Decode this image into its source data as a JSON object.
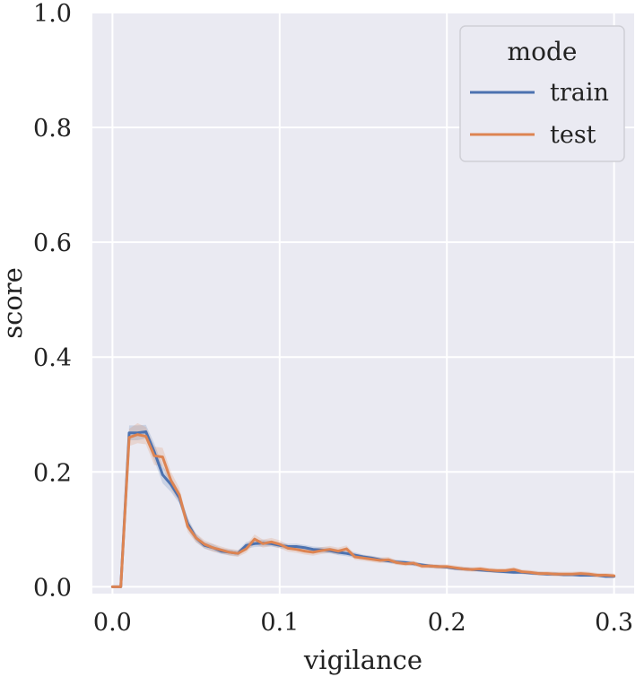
{
  "chart_data": {
    "type": "line",
    "title": "",
    "xlabel": "vigilance",
    "ylabel": "score",
    "xlim": [
      -0.012,
      0.312
    ],
    "ylim": [
      -0.012,
      1.0
    ],
    "x_ticks": [
      0.0,
      0.1,
      0.2,
      0.3
    ],
    "x_tick_labels": [
      "0.0",
      "0.1",
      "0.2",
      "0.3"
    ],
    "y_ticks": [
      0.0,
      0.2,
      0.4,
      0.6,
      0.8,
      1.0
    ],
    "y_tick_labels": [
      "0.0",
      "0.2",
      "0.4",
      "0.6",
      "0.8",
      "1.0"
    ],
    "grid": true,
    "legend": {
      "title": "mode",
      "placement": "top-right",
      "entries": [
        "train",
        "test"
      ]
    },
    "x": [
      0.0,
      0.005,
      0.01,
      0.015,
      0.02,
      0.025,
      0.03,
      0.035,
      0.04,
      0.045,
      0.05,
      0.055,
      0.06,
      0.065,
      0.07,
      0.075,
      0.08,
      0.085,
      0.09,
      0.095,
      0.1,
      0.105,
      0.11,
      0.115,
      0.12,
      0.125,
      0.13,
      0.135,
      0.14,
      0.145,
      0.15,
      0.155,
      0.16,
      0.165,
      0.17,
      0.175,
      0.18,
      0.185,
      0.19,
      0.195,
      0.2,
      0.205,
      0.21,
      0.215,
      0.22,
      0.225,
      0.23,
      0.235,
      0.24,
      0.245,
      0.25,
      0.255,
      0.26,
      0.265,
      0.27,
      0.275,
      0.28,
      0.285,
      0.29,
      0.295,
      0.3
    ],
    "series": [
      {
        "name": "train",
        "color": "#4c72b0",
        "values": [
          0.0,
          0.0,
          0.268,
          0.268,
          0.27,
          0.235,
          0.195,
          0.178,
          0.155,
          0.11,
          0.085,
          0.072,
          0.068,
          0.062,
          0.06,
          0.058,
          0.072,
          0.075,
          0.076,
          0.075,
          0.072,
          0.07,
          0.07,
          0.068,
          0.065,
          0.064,
          0.063,
          0.06,
          0.058,
          0.055,
          0.052,
          0.05,
          0.047,
          0.045,
          0.043,
          0.042,
          0.04,
          0.038,
          0.036,
          0.035,
          0.034,
          0.032,
          0.031,
          0.03,
          0.029,
          0.028,
          0.027,
          0.026,
          0.025,
          0.025,
          0.024,
          0.023,
          0.022,
          0.022,
          0.021,
          0.021,
          0.02,
          0.02,
          0.02,
          0.018,
          0.018
        ],
        "ci_low": [
          0.0,
          0.0,
          0.255,
          0.255,
          0.258,
          0.22,
          0.18,
          0.165,
          0.145,
          0.1,
          0.078,
          0.066,
          0.062,
          0.057,
          0.055,
          0.053,
          0.066,
          0.069,
          0.07,
          0.07,
          0.067,
          0.065,
          0.065,
          0.063,
          0.06,
          0.059,
          0.058,
          0.055,
          0.053,
          0.05,
          0.048,
          0.046,
          0.043,
          0.041,
          0.039,
          0.038,
          0.036,
          0.035,
          0.033,
          0.032,
          0.031,
          0.029,
          0.028,
          0.027,
          0.026,
          0.025,
          0.024,
          0.023,
          0.022,
          0.022,
          0.021,
          0.02,
          0.019,
          0.019,
          0.018,
          0.018,
          0.017,
          0.017,
          0.017,
          0.015,
          0.015
        ],
        "ci_high": [
          0.0,
          0.0,
          0.281,
          0.281,
          0.282,
          0.25,
          0.21,
          0.191,
          0.165,
          0.12,
          0.092,
          0.078,
          0.074,
          0.067,
          0.065,
          0.063,
          0.078,
          0.081,
          0.082,
          0.08,
          0.077,
          0.075,
          0.075,
          0.073,
          0.07,
          0.069,
          0.068,
          0.065,
          0.063,
          0.06,
          0.056,
          0.054,
          0.051,
          0.049,
          0.047,
          0.046,
          0.044,
          0.041,
          0.039,
          0.038,
          0.037,
          0.035,
          0.034,
          0.033,
          0.032,
          0.031,
          0.03,
          0.029,
          0.028,
          0.028,
          0.027,
          0.026,
          0.025,
          0.025,
          0.024,
          0.024,
          0.023,
          0.023,
          0.023,
          0.021,
          0.021
        ]
      },
      {
        "name": "test",
        "color": "#dd8452",
        "values": [
          0.0,
          0.0,
          0.26,
          0.265,
          0.262,
          0.228,
          0.226,
          0.185,
          0.16,
          0.105,
          0.085,
          0.074,
          0.068,
          0.064,
          0.06,
          0.058,
          0.066,
          0.083,
          0.075,
          0.078,
          0.074,
          0.067,
          0.065,
          0.062,
          0.06,
          0.063,
          0.065,
          0.062,
          0.066,
          0.052,
          0.05,
          0.048,
          0.046,
          0.047,
          0.042,
          0.04,
          0.041,
          0.036,
          0.036,
          0.035,
          0.035,
          0.033,
          0.031,
          0.03,
          0.031,
          0.029,
          0.028,
          0.028,
          0.03,
          0.026,
          0.025,
          0.023,
          0.023,
          0.022,
          0.022,
          0.022,
          0.023,
          0.022,
          0.02,
          0.02,
          0.019
        ],
        "ci_low": [
          0.0,
          0.0,
          0.245,
          0.25,
          0.248,
          0.212,
          0.21,
          0.17,
          0.148,
          0.095,
          0.077,
          0.067,
          0.061,
          0.058,
          0.054,
          0.052,
          0.059,
          0.075,
          0.068,
          0.071,
          0.067,
          0.061,
          0.059,
          0.056,
          0.054,
          0.057,
          0.059,
          0.056,
          0.06,
          0.047,
          0.045,
          0.043,
          0.041,
          0.042,
          0.038,
          0.036,
          0.037,
          0.032,
          0.032,
          0.031,
          0.031,
          0.029,
          0.027,
          0.026,
          0.027,
          0.025,
          0.024,
          0.024,
          0.026,
          0.022,
          0.021,
          0.019,
          0.019,
          0.018,
          0.018,
          0.018,
          0.019,
          0.018,
          0.016,
          0.016,
          0.015
        ],
        "ci_high": [
          0.0,
          0.0,
          0.275,
          0.285,
          0.278,
          0.244,
          0.242,
          0.2,
          0.172,
          0.115,
          0.093,
          0.081,
          0.075,
          0.07,
          0.066,
          0.064,
          0.073,
          0.091,
          0.082,
          0.085,
          0.081,
          0.073,
          0.071,
          0.068,
          0.066,
          0.069,
          0.071,
          0.068,
          0.072,
          0.057,
          0.055,
          0.053,
          0.051,
          0.052,
          0.046,
          0.044,
          0.045,
          0.04,
          0.04,
          0.039,
          0.039,
          0.037,
          0.035,
          0.034,
          0.035,
          0.033,
          0.032,
          0.032,
          0.034,
          0.03,
          0.029,
          0.027,
          0.027,
          0.026,
          0.026,
          0.026,
          0.027,
          0.026,
          0.024,
          0.024,
          0.023
        ]
      }
    ]
  }
}
